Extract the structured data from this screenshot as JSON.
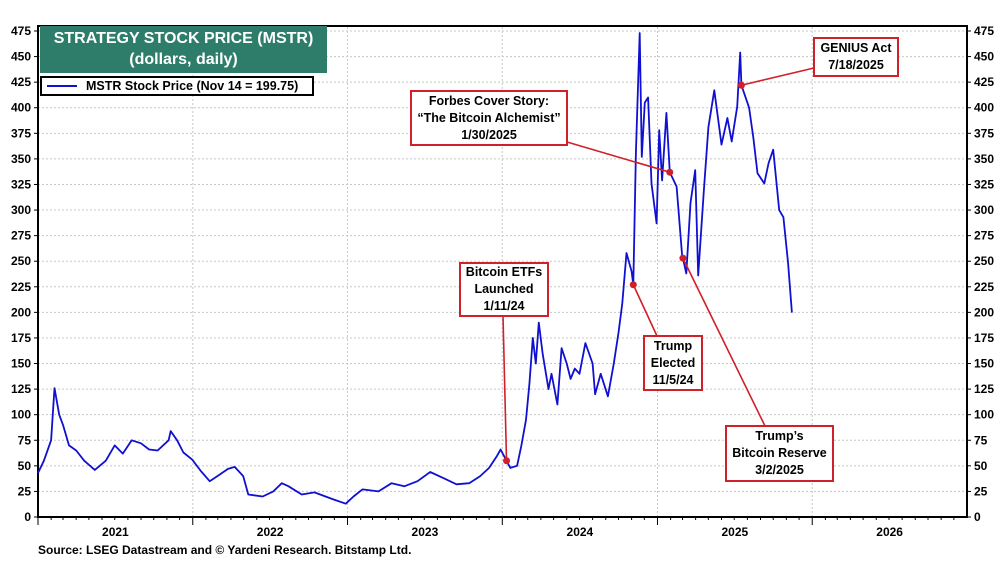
{
  "chart_data": {
    "type": "line",
    "title": "STRATEGY STOCK PRICE (MSTR)",
    "subtitle": "(dollars, daily)",
    "xlabel": "",
    "ylabel": "",
    "xlim": [
      "2021-01-01",
      "2027-01-01"
    ],
    "ylim": [
      0,
      475
    ],
    "y_ticks": [
      0,
      25,
      50,
      75,
      100,
      125,
      150,
      175,
      200,
      225,
      250,
      275,
      300,
      325,
      350,
      375,
      400,
      425,
      450,
      475
    ],
    "x_tick_labels": [
      "2021",
      "2022",
      "2023",
      "2024",
      "2025",
      "2026"
    ],
    "y_axis_sides": [
      "left",
      "right"
    ],
    "grid": true,
    "legend_placement": "top-left",
    "series": [
      {
        "name": "MSTR Stock Price (Nov 14 = 199.75)",
        "color": "#1010d0",
        "points": [
          [
            "2021-01-01",
            43
          ],
          [
            "2021-01-15",
            55
          ],
          [
            "2021-02-01",
            75
          ],
          [
            "2021-02-09",
            126
          ],
          [
            "2021-02-20",
            100
          ],
          [
            "2021-03-01",
            90
          ],
          [
            "2021-03-15",
            70
          ],
          [
            "2021-04-01",
            65
          ],
          [
            "2021-04-20",
            55
          ],
          [
            "2021-05-15",
            46
          ],
          [
            "2021-06-10",
            55
          ],
          [
            "2021-07-01",
            70
          ],
          [
            "2021-07-20",
            62
          ],
          [
            "2021-08-10",
            75
          ],
          [
            "2021-09-01",
            72
          ],
          [
            "2021-09-20",
            66
          ],
          [
            "2021-10-10",
            65
          ],
          [
            "2021-11-05",
            75
          ],
          [
            "2021-11-10",
            84
          ],
          [
            "2021-11-25",
            75
          ],
          [
            "2021-12-10",
            63
          ],
          [
            "2021-12-31",
            56
          ],
          [
            "2022-01-20",
            45
          ],
          [
            "2022-02-10",
            35
          ],
          [
            "2022-02-28",
            40
          ],
          [
            "2022-03-25",
            47
          ],
          [
            "2022-04-10",
            49
          ],
          [
            "2022-04-30",
            40
          ],
          [
            "2022-05-12",
            22
          ],
          [
            "2022-06-15",
            20
          ],
          [
            "2022-07-10",
            25
          ],
          [
            "2022-07-30",
            33
          ],
          [
            "2022-08-15",
            30
          ],
          [
            "2022-09-15",
            22
          ],
          [
            "2022-10-15",
            24
          ],
          [
            "2022-11-10",
            20
          ],
          [
            "2022-11-30",
            17
          ],
          [
            "2022-12-28",
            13
          ],
          [
            "2023-01-15",
            20
          ],
          [
            "2023-02-05",
            27
          ],
          [
            "2023-03-15",
            25
          ],
          [
            "2023-04-15",
            33
          ],
          [
            "2023-05-15",
            30
          ],
          [
            "2023-06-15",
            35
          ],
          [
            "2023-07-15",
            44
          ],
          [
            "2023-08-15",
            38
          ],
          [
            "2023-09-15",
            32
          ],
          [
            "2023-10-15",
            33
          ],
          [
            "2023-11-10",
            40
          ],
          [
            "2023-12-01",
            48
          ],
          [
            "2023-12-20",
            60
          ],
          [
            "2023-12-28",
            66
          ],
          [
            "2024-01-11",
            55
          ],
          [
            "2024-01-20",
            48
          ],
          [
            "2024-02-05",
            50
          ],
          [
            "2024-02-15",
            70
          ],
          [
            "2024-02-26",
            95
          ],
          [
            "2024-03-05",
            130
          ],
          [
            "2024-03-13",
            175
          ],
          [
            "2024-03-20",
            150
          ],
          [
            "2024-03-27",
            190
          ],
          [
            "2024-04-05",
            160
          ],
          [
            "2024-04-19",
            125
          ],
          [
            "2024-04-26",
            140
          ],
          [
            "2024-05-10",
            110
          ],
          [
            "2024-05-20",
            165
          ],
          [
            "2024-06-01",
            150
          ],
          [
            "2024-06-10",
            135
          ],
          [
            "2024-06-20",
            145
          ],
          [
            "2024-07-01",
            140
          ],
          [
            "2024-07-15",
            170
          ],
          [
            "2024-08-01",
            150
          ],
          [
            "2024-08-07",
            120
          ],
          [
            "2024-08-20",
            140
          ],
          [
            "2024-09-06",
            118
          ],
          [
            "2024-09-20",
            150
          ],
          [
            "2024-10-01",
            180
          ],
          [
            "2024-10-10",
            209
          ],
          [
            "2024-10-20",
            258
          ],
          [
            "2024-11-01",
            240
          ],
          [
            "2024-11-05",
            227
          ],
          [
            "2024-11-11",
            356
          ],
          [
            "2024-11-20",
            473
          ],
          [
            "2024-11-25",
            352
          ],
          [
            "2024-12-02",
            405
          ],
          [
            "2024-12-10",
            410
          ],
          [
            "2024-12-18",
            326
          ],
          [
            "2024-12-30",
            287
          ],
          [
            "2025-01-05",
            378
          ],
          [
            "2025-01-12",
            329
          ],
          [
            "2025-01-22",
            395
          ],
          [
            "2025-01-30",
            337
          ],
          [
            "2025-02-15",
            323
          ],
          [
            "2025-03-01",
            251
          ],
          [
            "2025-03-02",
            253
          ],
          [
            "2025-03-10",
            238
          ],
          [
            "2025-03-20",
            307
          ],
          [
            "2025-03-31",
            339
          ],
          [
            "2025-04-07",
            236
          ],
          [
            "2025-04-20",
            317
          ],
          [
            "2025-05-01",
            381
          ],
          [
            "2025-05-15",
            417
          ],
          [
            "2025-06-01",
            364
          ],
          [
            "2025-06-15",
            390
          ],
          [
            "2025-06-25",
            367
          ],
          [
            "2025-07-08",
            401
          ],
          [
            "2025-07-15",
            454
          ],
          [
            "2025-07-18",
            422
          ],
          [
            "2025-08-05",
            400
          ],
          [
            "2025-08-15",
            371
          ],
          [
            "2025-08-25",
            336
          ],
          [
            "2025-09-10",
            326
          ],
          [
            "2025-09-20",
            346
          ],
          [
            "2025-10-01",
            359
          ],
          [
            "2025-10-15",
            300
          ],
          [
            "2025-10-25",
            293
          ],
          [
            "2025-11-05",
            248
          ],
          [
            "2025-11-14",
            199.75
          ]
        ]
      }
    ],
    "annotations": [
      {
        "id": "etf",
        "lines": [
          "Bitcoin ETFs",
          "Launched",
          "1/11/24"
        ],
        "date": "2024-01-11",
        "value": 55
      },
      {
        "id": "elected",
        "lines": [
          "Trump",
          "Elected",
          "11/5/24"
        ],
        "date": "2024-11-05",
        "value": 227
      },
      {
        "id": "forbes",
        "lines": [
          "Forbes Cover Story:",
          "“The Bitcoin Alchemist”",
          "1/30/2025"
        ],
        "date": "2025-01-30",
        "value": 337
      },
      {
        "id": "reserve",
        "lines": [
          "Trump’s",
          "Bitcoin Reserve",
          "3/2/2025"
        ],
        "date": "2025-03-02",
        "value": 253
      },
      {
        "id": "genius",
        "lines": [
          "GENIUS Act",
          "7/18/2025"
        ],
        "date": "2025-07-18",
        "value": 422
      }
    ],
    "annotation_color": "#d0202a",
    "title_bg_color": "#2e7d6b"
  },
  "legend": {
    "label": "MSTR Stock Price (Nov 14 = 199.75)"
  },
  "source": "Source: LSEG Datastream and © Yardeni Research. Bitstamp Ltd."
}
